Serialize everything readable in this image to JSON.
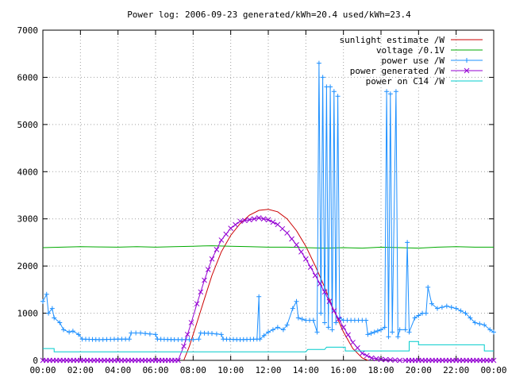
{
  "chart_data": {
    "type": "line",
    "title": "Power log: 2006-09-23 generated/kWh=20.4 used/kWh=23.4",
    "xlabel": "",
    "ylabel": "",
    "xlim": [
      0,
      24
    ],
    "ylim": [
      0,
      7000
    ],
    "x_ticks": [
      "00:00",
      "02:00",
      "04:00",
      "06:00",
      "08:00",
      "10:00",
      "12:00",
      "14:00",
      "16:00",
      "18:00",
      "20:00",
      "22:00",
      "00:00"
    ],
    "y_ticks": [
      "0",
      "1000",
      "2000",
      "3000",
      "4000",
      "5000",
      "6000",
      "7000"
    ],
    "grid": true,
    "legend_position": "top-right",
    "series": [
      {
        "name": "sunlight estimate /W",
        "color": "#cc0000",
        "marker": "none",
        "points": [
          [
            7.5,
            0
          ],
          [
            7.8,
            300
          ],
          [
            8.2,
            800
          ],
          [
            8.6,
            1300
          ],
          [
            9.0,
            1800
          ],
          [
            9.5,
            2300
          ],
          [
            10.0,
            2650
          ],
          [
            10.5,
            2900
          ],
          [
            11.0,
            3080
          ],
          [
            11.5,
            3180
          ],
          [
            12.0,
            3200
          ],
          [
            12.5,
            3150
          ],
          [
            13.0,
            3000
          ],
          [
            13.5,
            2750
          ],
          [
            14.0,
            2420
          ],
          [
            14.5,
            2000
          ],
          [
            15.0,
            1550
          ],
          [
            15.5,
            1050
          ],
          [
            16.0,
            600
          ],
          [
            16.5,
            250
          ],
          [
            17.0,
            50
          ],
          [
            17.3,
            0
          ]
        ]
      },
      {
        "name": "voltage /0.1V",
        "color": "#00aa00",
        "marker": "none",
        "points": [
          [
            0,
            2390
          ],
          [
            1,
            2400
          ],
          [
            2,
            2410
          ],
          [
            3,
            2405
          ],
          [
            4,
            2400
          ],
          [
            5,
            2410
          ],
          [
            6,
            2400
          ],
          [
            7,
            2410
          ],
          [
            8,
            2420
          ],
          [
            9,
            2430
          ],
          [
            10,
            2420
          ],
          [
            11,
            2410
          ],
          [
            12,
            2400
          ],
          [
            13,
            2400
          ],
          [
            14,
            2390
          ],
          [
            15,
            2380
          ],
          [
            16,
            2390
          ],
          [
            17,
            2380
          ],
          [
            18,
            2400
          ],
          [
            19,
            2390
          ],
          [
            20,
            2380
          ],
          [
            21,
            2400
          ],
          [
            22,
            2410
          ],
          [
            23,
            2400
          ],
          [
            24,
            2400
          ]
        ]
      },
      {
        "name": "power use /W",
        "color": "#1e90ff",
        "marker": "+",
        "points": [
          [
            0,
            1250
          ],
          [
            0.2,
            1400
          ],
          [
            0.3,
            1000
          ],
          [
            0.5,
            1100
          ],
          [
            0.6,
            900
          ],
          [
            0.9,
            800
          ],
          [
            1.1,
            650
          ],
          [
            1.4,
            600
          ],
          [
            1.6,
            620
          ],
          [
            1.9,
            550
          ],
          [
            2.1,
            450
          ],
          [
            3,
            440
          ],
          [
            4,
            450
          ],
          [
            4.6,
            450
          ],
          [
            4.7,
            580
          ],
          [
            5.2,
            580
          ],
          [
            5.7,
            560
          ],
          [
            6,
            550
          ],
          [
            6.1,
            450
          ],
          [
            7,
            440
          ],
          [
            8,
            440
          ],
          [
            8.3,
            450
          ],
          [
            8.4,
            580
          ],
          [
            9,
            570
          ],
          [
            9.5,
            550
          ],
          [
            9.6,
            450
          ],
          [
            10.5,
            440
          ],
          [
            11.4,
            450
          ],
          [
            11.5,
            1350
          ],
          [
            11.55,
            450
          ],
          [
            12,
            600
          ],
          [
            12.5,
            700
          ],
          [
            12.8,
            650
          ],
          [
            13,
            750
          ],
          [
            13.3,
            1100
          ],
          [
            13.5,
            1250
          ],
          [
            13.6,
            900
          ],
          [
            14,
            850
          ],
          [
            14.4,
            850
          ],
          [
            14.6,
            600
          ],
          [
            14.7,
            6300
          ],
          [
            14.8,
            1000
          ],
          [
            14.9,
            6000
          ],
          [
            15,
            800
          ],
          [
            15.1,
            5800
          ],
          [
            15.2,
            700
          ],
          [
            15.3,
            5800
          ],
          [
            15.4,
            650
          ],
          [
            15.5,
            5700
          ],
          [
            15.6,
            800
          ],
          [
            15.7,
            5600
          ],
          [
            15.8,
            900
          ],
          [
            16,
            850
          ],
          [
            17,
            850
          ],
          [
            17.2,
            850
          ],
          [
            17.3,
            550
          ],
          [
            18,
            650
          ],
          [
            18.2,
            700
          ],
          [
            18.3,
            5700
          ],
          [
            18.4,
            500
          ],
          [
            18.5,
            5650
          ],
          [
            18.6,
            600
          ],
          [
            18.8,
            5700
          ],
          [
            18.9,
            500
          ],
          [
            19,
            650
          ],
          [
            19.3,
            650
          ],
          [
            19.4,
            2500
          ],
          [
            19.5,
            600
          ],
          [
            19.8,
            900
          ],
          [
            20.2,
            1000
          ],
          [
            20.4,
            1000
          ],
          [
            20.5,
            1550
          ],
          [
            20.7,
            1200
          ],
          [
            21,
            1100
          ],
          [
            21.5,
            1150
          ],
          [
            22,
            1100
          ],
          [
            22.5,
            1000
          ],
          [
            23,
            800
          ],
          [
            23.5,
            750
          ],
          [
            23.8,
            650
          ],
          [
            24,
            600
          ]
        ]
      },
      {
        "name": "power generated /W",
        "color": "#9400d3",
        "marker": "x",
        "points": [
          [
            0,
            0
          ],
          [
            2,
            0
          ],
          [
            4,
            0
          ],
          [
            6,
            0
          ],
          [
            7.2,
            0
          ],
          [
            7.5,
            300
          ],
          [
            7.9,
            800
          ],
          [
            8.2,
            1200
          ],
          [
            8.6,
            1700
          ],
          [
            9.0,
            2150
          ],
          [
            9.5,
            2550
          ],
          [
            10.0,
            2800
          ],
          [
            10.5,
            2950
          ],
          [
            11.0,
            2980
          ],
          [
            11.5,
            3020
          ],
          [
            12.0,
            2980
          ],
          [
            12.5,
            2880
          ],
          [
            13.0,
            2700
          ],
          [
            13.5,
            2450
          ],
          [
            14.0,
            2150
          ],
          [
            14.5,
            1800
          ],
          [
            15.0,
            1450
          ],
          [
            15.5,
            1050
          ],
          [
            16.0,
            700
          ],
          [
            16.5,
            380
          ],
          [
            17.0,
            150
          ],
          [
            17.5,
            50
          ],
          [
            18.0,
            20
          ],
          [
            18.5,
            10
          ],
          [
            19.0,
            0
          ],
          [
            19.3,
            0
          ],
          [
            20,
            0
          ],
          [
            22,
            0
          ],
          [
            24,
            0
          ]
        ]
      },
      {
        "name": "power on C14 /W",
        "color": "#00cccc",
        "marker": "none",
        "points": [
          [
            0,
            250
          ],
          [
            0.6,
            250
          ],
          [
            0.6,
            180
          ],
          [
            4,
            180
          ],
          [
            8,
            180
          ],
          [
            12,
            180
          ],
          [
            14,
            180
          ],
          [
            14.1,
            230
          ],
          [
            15,
            230
          ],
          [
            15.1,
            280
          ],
          [
            16.1,
            280
          ],
          [
            16.1,
            200
          ],
          [
            19.5,
            200
          ],
          [
            19.5,
            400
          ],
          [
            20,
            400
          ],
          [
            20,
            330
          ],
          [
            23.5,
            330
          ],
          [
            23.5,
            200
          ],
          [
            24,
            200
          ]
        ]
      }
    ]
  }
}
